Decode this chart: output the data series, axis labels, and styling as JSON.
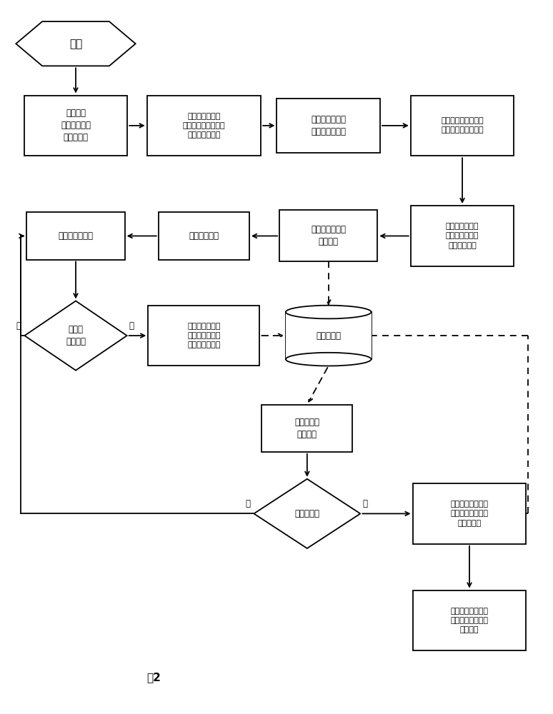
{
  "title": "图2",
  "background_color": "#ffffff",
  "start_text": "开始",
  "box1_text": "在监控点\n维护模块建立\n监控点模型",
  "box2_text": "在联动关系维护\n模块建立监控点关联\n关系和分析策略",
  "box3_text": "观察点维护模块\n建立观察点模型",
  "box4_text": "将模型发布到业务流\n程接口和过程数据库",
  "box5_text": "通过业务流程接\n口将模型数据发\n布到业务系统",
  "box6_text": "设置业务流程中\n的观察点",
  "box7_text": "启动业务流程",
  "box8_text": "维护业务数据器",
  "diamond1_text": "敏感项\n数据变化",
  "box9_text": "过程数据动态跟\n踪模块自动维护\n监控点变化环境",
  "cylinder_text": "过程数据库",
  "box10_text": "保存监控点\n环境变化",
  "diamond2_text": "是否观察点",
  "box11_text": "分析策略计算模块\n根据监控点动态数\n据进行分析",
  "box12_text": "通过业务流程接口\n将分析结果发布到\n业务系统",
  "label_fig": "图2",
  "label_yes1": "是",
  "label_no1": "否",
  "label_yes2": "是",
  "label_no2": "否"
}
